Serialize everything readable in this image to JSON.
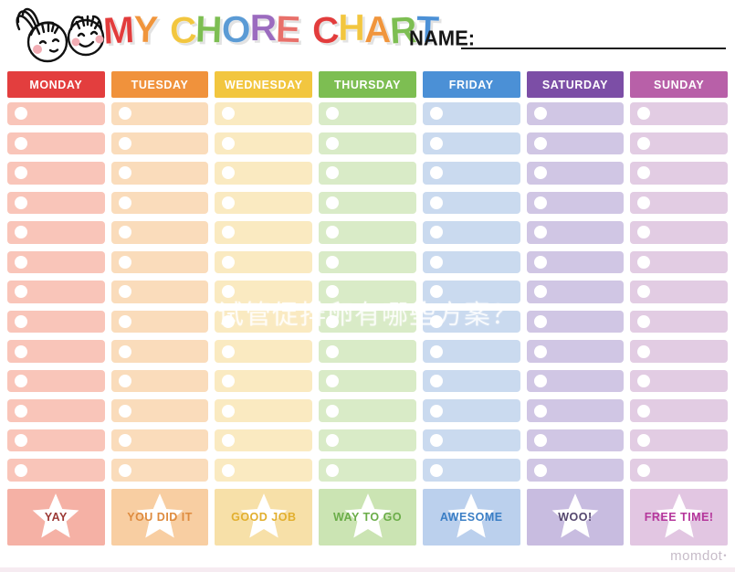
{
  "title": {
    "text": "MY CHORE CHART",
    "letters": [
      {
        "ch": "M",
        "color": "#E23C3C"
      },
      {
        "ch": "Y",
        "color": "#F0953C"
      },
      {
        "ch": " "
      },
      {
        "ch": "C",
        "color": "#F2C63F"
      },
      {
        "ch": "H",
        "color": "#7DBE52"
      },
      {
        "ch": "O",
        "color": "#5B9BD5"
      },
      {
        "ch": "R",
        "color": "#9B6BBF"
      },
      {
        "ch": "E",
        "color": "#E8706A"
      },
      {
        "ch": " "
      },
      {
        "ch": "C",
        "color": "#E23C3C"
      },
      {
        "ch": "H",
        "color": "#F2C63F"
      },
      {
        "ch": "A",
        "color": "#F0953C"
      },
      {
        "ch": "R",
        "color": "#7DBE52"
      },
      {
        "ch": "T",
        "color": "#4B90D6"
      }
    ]
  },
  "name": {
    "label": "NAME:",
    "value": ""
  },
  "grid": {
    "rows_per_column": 13,
    "row_marker_icon": "circle-icon",
    "footer_badge_icon": "star-icon"
  },
  "columns": [
    {
      "day": "MONDAY",
      "header_color": "#E33E3E",
      "row_color": "#F9C5B9",
      "footer_color": "#F5B1A5",
      "footer_label": "YAY",
      "footer_text_color": "#9C3A36"
    },
    {
      "day": "TUESDAY",
      "header_color": "#F0923C",
      "row_color": "#FADCBB",
      "footer_color": "#F8CEA2",
      "footer_label": "YOU DID IT",
      "footer_text_color": "#DE8B3E"
    },
    {
      "day": "WEDNESDAY",
      "header_color": "#F2C63F",
      "row_color": "#FAEAC1",
      "footer_color": "#F7E0A8",
      "footer_label": "GOOD JOB",
      "footer_text_color": "#E2AF2E"
    },
    {
      "day": "THURSDAY",
      "header_color": "#7DBE52",
      "row_color": "#D9EBC7",
      "footer_color": "#CBE4B3",
      "footer_label": "WAY TO GO",
      "footer_text_color": "#6BAD49"
    },
    {
      "day": "FRIDAY",
      "header_color": "#4B90D6",
      "row_color": "#CADAEF",
      "footer_color": "#BBD0ED",
      "footer_label": "AWESOME",
      "footer_text_color": "#3A7EC5"
    },
    {
      "day": "SATURDAY",
      "header_color": "#7C4EA6",
      "row_color": "#D0C6E4",
      "footer_color": "#C8BCE0",
      "footer_label": "WOO!",
      "footer_text_color": "#55476E"
    },
    {
      "day": "SUNDAY",
      "header_color": "#B860A8",
      "row_color": "#E2CCE3",
      "footer_color": "#E2C6E2",
      "footer_label": "FREE TIME!",
      "footer_text_color": "#B5369B"
    }
  ],
  "watermark": "试管促排卵有哪些方案？",
  "brand": {
    "name": "momdot",
    "mark": "•"
  }
}
